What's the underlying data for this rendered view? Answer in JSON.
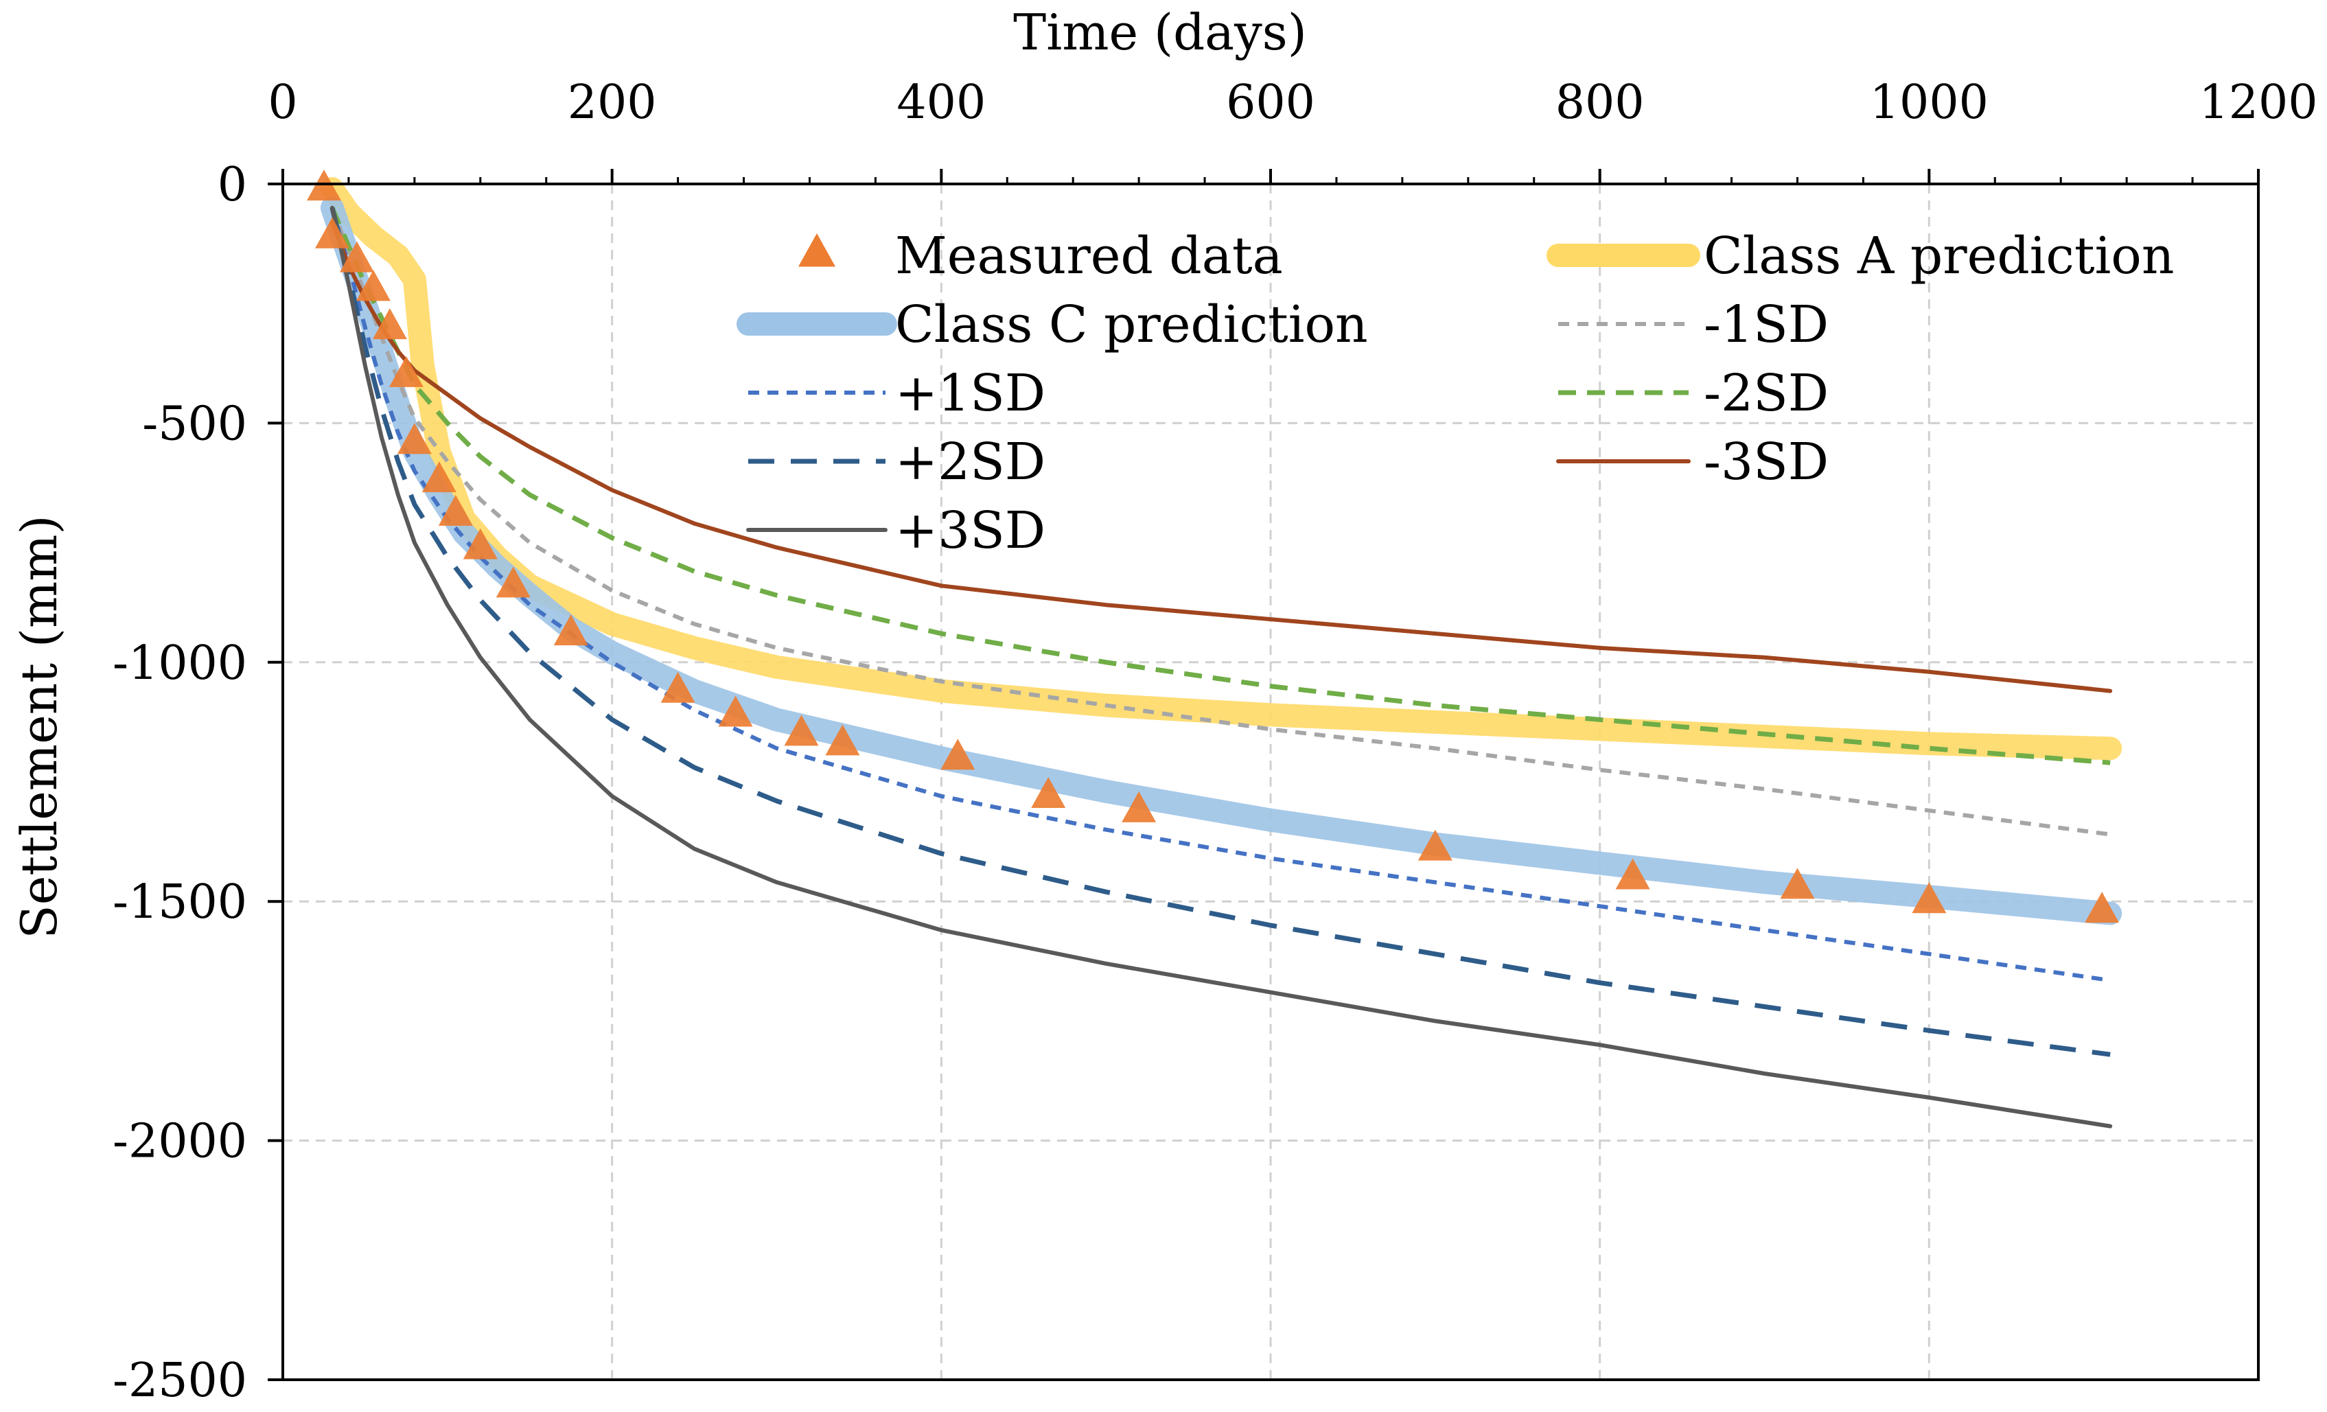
{
  "chart_data": {
    "type": "line",
    "title": "",
    "xlabel": "Time (days)",
    "ylabel": "Settlement (mm)",
    "xlim": [
      0,
      1200
    ],
    "ylim": [
      -2500,
      0
    ],
    "x_ticks": [
      0,
      200,
      400,
      600,
      800,
      1000,
      1200
    ],
    "y_ticks": [
      0,
      -500,
      -1000,
      -1500,
      -2000,
      -2500
    ],
    "x_tick_labels": [
      "0",
      "200",
      "400",
      "600",
      "800",
      "1000",
      "1200"
    ],
    "y_tick_labels": [
      "0",
      "-500",
      "-1000",
      "-1500",
      "-2000",
      "-2500"
    ],
    "grid": true,
    "x_axis_position": "top",
    "legend_position": "top-right, inside plot",
    "measured": {
      "name": "Measured data",
      "color": "#ED7D31",
      "marker": "triangle",
      "points": [
        [
          25,
          -10
        ],
        [
          30,
          -110
        ],
        [
          45,
          -160
        ],
        [
          55,
          -220
        ],
        [
          65,
          -300
        ],
        [
          75,
          -400
        ],
        [
          80,
          -540
        ],
        [
          95,
          -620
        ],
        [
          105,
          -690
        ],
        [
          120,
          -760
        ],
        [
          140,
          -840
        ],
        [
          175,
          -940
        ],
        [
          240,
          -1060
        ],
        [
          275,
          -1110
        ],
        [
          315,
          -1150
        ],
        [
          340,
          -1170
        ],
        [
          410,
          -1200
        ],
        [
          465,
          -1280
        ],
        [
          520,
          -1310
        ],
        [
          700,
          -1390
        ],
        [
          820,
          -1450
        ],
        [
          920,
          -1470
        ],
        [
          1000,
          -1500
        ],
        [
          1105,
          -1520
        ]
      ]
    },
    "series": [
      {
        "name": "Class A prediction",
        "color": "#FFD966",
        "style": "thick",
        "points": [
          [
            30,
            -10
          ],
          [
            40,
            -60
          ],
          [
            55,
            -110
          ],
          [
            70,
            -150
          ],
          [
            80,
            -200
          ],
          [
            85,
            -380
          ],
          [
            95,
            -560
          ],
          [
            110,
            -700
          ],
          [
            130,
            -780
          ],
          [
            150,
            -840
          ],
          [
            200,
            -920
          ],
          [
            250,
            -970
          ],
          [
            300,
            -1010
          ],
          [
            400,
            -1060
          ],
          [
            500,
            -1090
          ],
          [
            600,
            -1110
          ],
          [
            700,
            -1125
          ],
          [
            800,
            -1140
          ],
          [
            900,
            -1155
          ],
          [
            1000,
            -1170
          ],
          [
            1110,
            -1180
          ]
        ]
      },
      {
        "name": "Class C prediction",
        "color": "#9DC3E6",
        "style": "thick",
        "points": [
          [
            30,
            -50
          ],
          [
            40,
            -150
          ],
          [
            50,
            -250
          ],
          [
            60,
            -350
          ],
          [
            70,
            -460
          ],
          [
            80,
            -560
          ],
          [
            95,
            -650
          ],
          [
            110,
            -730
          ],
          [
            130,
            -800
          ],
          [
            150,
            -860
          ],
          [
            175,
            -930
          ],
          [
            200,
            -980
          ],
          [
            250,
            -1060
          ],
          [
            300,
            -1120
          ],
          [
            400,
            -1200
          ],
          [
            500,
            -1270
          ],
          [
            600,
            -1330
          ],
          [
            700,
            -1380
          ],
          [
            800,
            -1420
          ],
          [
            900,
            -1460
          ],
          [
            1000,
            -1490
          ],
          [
            1110,
            -1525
          ]
        ]
      },
      {
        "name": "-1SD",
        "color": "#A6A6A6",
        "style": "short-dash",
        "points": [
          [
            30,
            -50
          ],
          [
            40,
            -140
          ],
          [
            50,
            -230
          ],
          [
            60,
            -320
          ],
          [
            70,
            -410
          ],
          [
            80,
            -490
          ],
          [
            100,
            -580
          ],
          [
            120,
            -660
          ],
          [
            150,
            -750
          ],
          [
            200,
            -850
          ],
          [
            250,
            -920
          ],
          [
            300,
            -970
          ],
          [
            400,
            -1040
          ],
          [
            500,
            -1090
          ],
          [
            600,
            -1140
          ],
          [
            700,
            -1180
          ],
          [
            800,
            -1225
          ],
          [
            900,
            -1265
          ],
          [
            1000,
            -1310
          ],
          [
            1110,
            -1360
          ]
        ]
      },
      {
        "name": "+1SD",
        "color": "#4472C4",
        "style": "short-dash",
        "points": [
          [
            30,
            -50
          ],
          [
            40,
            -170
          ],
          [
            50,
            -300
          ],
          [
            60,
            -420
          ],
          [
            70,
            -520
          ],
          [
            80,
            -600
          ],
          [
            100,
            -700
          ],
          [
            120,
            -780
          ],
          [
            150,
            -880
          ],
          [
            200,
            -1000
          ],
          [
            250,
            -1100
          ],
          [
            300,
            -1180
          ],
          [
            400,
            -1280
          ],
          [
            500,
            -1350
          ],
          [
            600,
            -1410
          ],
          [
            700,
            -1460
          ],
          [
            800,
            -1510
          ],
          [
            900,
            -1560
          ],
          [
            1000,
            -1610
          ],
          [
            1110,
            -1665
          ]
        ]
      },
      {
        "name": "-2SD",
        "color": "#70AD47",
        "style": "dash",
        "points": [
          [
            30,
            -50
          ],
          [
            40,
            -130
          ],
          [
            50,
            -210
          ],
          [
            60,
            -280
          ],
          [
            70,
            -350
          ],
          [
            80,
            -420
          ],
          [
            100,
            -500
          ],
          [
            120,
            -570
          ],
          [
            150,
            -650
          ],
          [
            200,
            -740
          ],
          [
            250,
            -810
          ],
          [
            300,
            -860
          ],
          [
            400,
            -940
          ],
          [
            500,
            -1000
          ],
          [
            600,
            -1050
          ],
          [
            700,
            -1090
          ],
          [
            800,
            -1120
          ],
          [
            900,
            -1150
          ],
          [
            1000,
            -1180
          ],
          [
            1110,
            -1210
          ]
        ]
      },
      {
        "name": "+2SD",
        "color": "#2E5C8A",
        "style": "long-dash",
        "points": [
          [
            30,
            -50
          ],
          [
            40,
            -190
          ],
          [
            50,
            -340
          ],
          [
            60,
            -470
          ],
          [
            70,
            -580
          ],
          [
            80,
            -670
          ],
          [
            100,
            -780
          ],
          [
            120,
            -870
          ],
          [
            150,
            -980
          ],
          [
            200,
            -1120
          ],
          [
            250,
            -1220
          ],
          [
            300,
            -1290
          ],
          [
            400,
            -1400
          ],
          [
            500,
            -1480
          ],
          [
            600,
            -1550
          ],
          [
            700,
            -1610
          ],
          [
            800,
            -1670
          ],
          [
            900,
            -1720
          ],
          [
            1000,
            -1770
          ],
          [
            1110,
            -1820
          ]
        ]
      },
      {
        "name": "-3SD",
        "color": "#A0451E",
        "style": "solid",
        "points": [
          [
            30,
            -80
          ],
          [
            40,
            -170
          ],
          [
            50,
            -240
          ],
          [
            60,
            -300
          ],
          [
            70,
            -350
          ],
          [
            80,
            -390
          ],
          [
            100,
            -440
          ],
          [
            120,
            -490
          ],
          [
            150,
            -550
          ],
          [
            200,
            -640
          ],
          [
            250,
            -710
          ],
          [
            300,
            -760
          ],
          [
            400,
            -840
          ],
          [
            500,
            -880
          ],
          [
            600,
            -910
          ],
          [
            700,
            -940
          ],
          [
            800,
            -970
          ],
          [
            900,
            -990
          ],
          [
            1000,
            -1020
          ],
          [
            1110,
            -1060
          ]
        ]
      },
      {
        "name": "+3SD",
        "color": "#595959",
        "style": "solid",
        "points": [
          [
            30,
            -50
          ],
          [
            40,
            -210
          ],
          [
            50,
            -380
          ],
          [
            60,
            -530
          ],
          [
            70,
            -650
          ],
          [
            80,
            -750
          ],
          [
            100,
            -880
          ],
          [
            120,
            -990
          ],
          [
            150,
            -1120
          ],
          [
            200,
            -1280
          ],
          [
            250,
            -1390
          ],
          [
            300,
            -1460
          ],
          [
            400,
            -1560
          ],
          [
            500,
            -1630
          ],
          [
            600,
            -1690
          ],
          [
            700,
            -1750
          ],
          [
            800,
            -1800
          ],
          [
            900,
            -1860
          ],
          [
            1000,
            -1910
          ],
          [
            1110,
            -1970
          ]
        ]
      }
    ]
  }
}
